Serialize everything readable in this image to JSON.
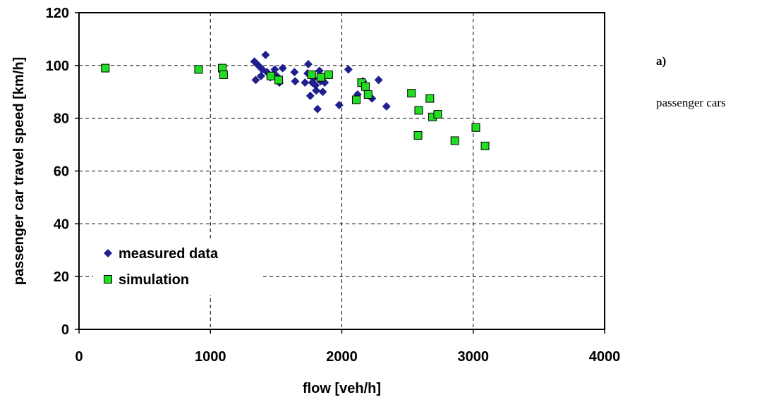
{
  "side_labels": {
    "panel": "a)",
    "caption": "passenger cars"
  },
  "colors": {
    "measured": "#1f1f8f",
    "simulation": "#22dd22",
    "simulation_stroke": "#000000",
    "grid": "#000000"
  },
  "chart_data": {
    "type": "scatter",
    "title": "",
    "xlabel": "flow [veh/h]",
    "ylabel": "passenger car travel speed [km/h]",
    "xlim": [
      0,
      4000
    ],
    "ylim": [
      0,
      120
    ],
    "xticks": [
      0,
      1000,
      2000,
      3000,
      4000
    ],
    "yticks": [
      0,
      20,
      40,
      60,
      80,
      100,
      120
    ],
    "grid": true,
    "legend_position": "bottom-left",
    "series": [
      {
        "name": "measured data",
        "marker": "diamond",
        "points": [
          [
            1335,
            101.5
          ],
          [
            1345,
            94.5
          ],
          [
            1365,
            100
          ],
          [
            1385,
            96
          ],
          [
            1395,
            98.5
          ],
          [
            1420,
            104
          ],
          [
            1430,
            97.5
          ],
          [
            1455,
            95.5
          ],
          [
            1475,
            96.5
          ],
          [
            1490,
            98.5
          ],
          [
            1505,
            96
          ],
          [
            1525,
            93.5
          ],
          [
            1550,
            99
          ],
          [
            1640,
            97.5
          ],
          [
            1645,
            94
          ],
          [
            1720,
            93.5
          ],
          [
            1740,
            97
          ],
          [
            1745,
            100.5
          ],
          [
            1760,
            88.5
          ],
          [
            1775,
            93.5
          ],
          [
            1785,
            95
          ],
          [
            1800,
            92.5
          ],
          [
            1805,
            90.5
          ],
          [
            1815,
            83.5
          ],
          [
            1830,
            98
          ],
          [
            1840,
            94
          ],
          [
            1855,
            90
          ],
          [
            1870,
            93.5
          ],
          [
            1980,
            85
          ],
          [
            2050,
            98.5
          ],
          [
            2120,
            89
          ],
          [
            2160,
            94
          ],
          [
            2230,
            87.5
          ],
          [
            2280,
            94.5
          ],
          [
            2340,
            84.5
          ]
        ]
      },
      {
        "name": "simulation",
        "marker": "square",
        "points": [
          [
            200,
            99
          ],
          [
            910,
            98.5
          ],
          [
            1090,
            99
          ],
          [
            1100,
            96.5
          ],
          [
            1460,
            96
          ],
          [
            1520,
            94.5
          ],
          [
            1770,
            96.5
          ],
          [
            1840,
            95.5
          ],
          [
            1900,
            96.5
          ],
          [
            2110,
            87
          ],
          [
            2150,
            93.5
          ],
          [
            2180,
            92
          ],
          [
            2200,
            89
          ],
          [
            2530,
            89.5
          ],
          [
            2580,
            73.5
          ],
          [
            2585,
            83
          ],
          [
            2670,
            87.5
          ],
          [
            2690,
            80.5
          ],
          [
            2730,
            81.5
          ],
          [
            2860,
            71.5
          ],
          [
            3020,
            76.5
          ],
          [
            3090,
            69.5
          ]
        ]
      }
    ]
  }
}
